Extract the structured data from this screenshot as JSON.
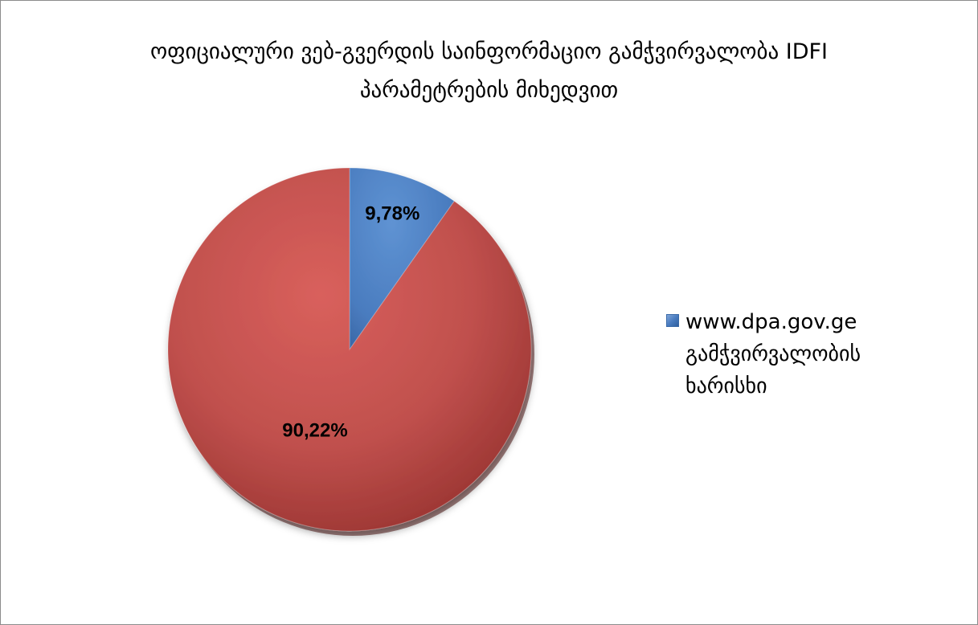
{
  "chart": {
    "title_line1": "ოფიციალური ვებ-გვერდის საინფორმაციო გამჭვირვალობა IDFI",
    "title_line2": "პარამეტრების მიხედვით"
  },
  "legend": {
    "line1": "www.dpa.gov.ge",
    "line2": "გამჭვირვალობის",
    "line3": "ხარისხი"
  },
  "colors": {
    "blue": "#4f81bd",
    "red": "#c0504d"
  },
  "chart_data": {
    "type": "pie",
    "title": "ოფიციალური ვებ-გვერდის საინფორმაციო გამჭვირვალობა IDFI პარამეტრების მიხედვით",
    "slices": [
      {
        "name": "www.dpa.gov.ge გამჭვირვალობის ხარისხი",
        "value": 9.78,
        "label": "9,78%",
        "color": "#4f81bd"
      },
      {
        "value": 90.22,
        "label": "90,22%",
        "color": "#c0504d"
      }
    ],
    "legend_position": "right"
  }
}
